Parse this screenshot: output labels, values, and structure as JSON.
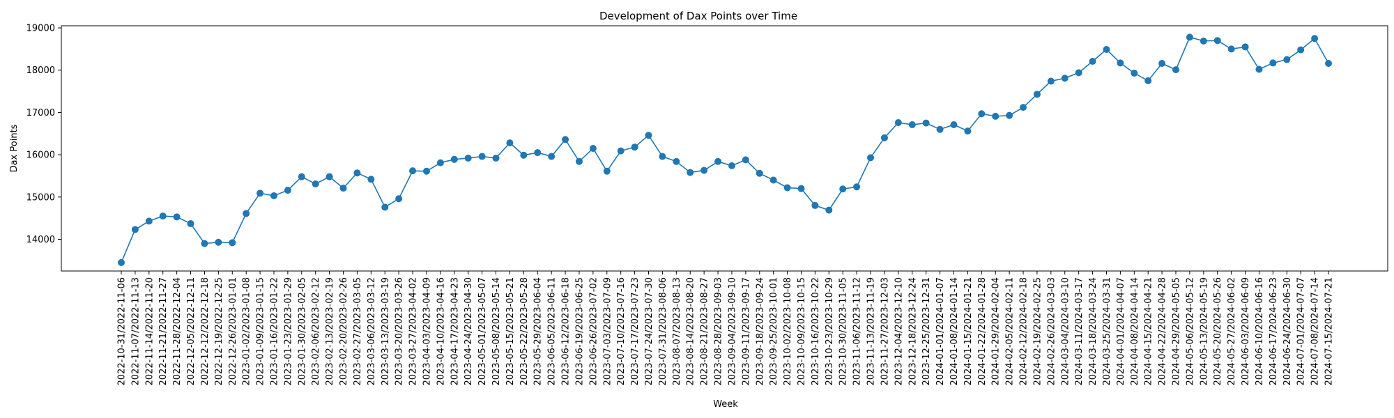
{
  "chart_data": {
    "type": "line",
    "title": "Development of Dax Points over Time",
    "xlabel": "Week",
    "ylabel": "Dax Points",
    "ylim": [
      13250,
      19050
    ],
    "yticks": [
      14000,
      15000,
      16000,
      17000,
      18000,
      19000
    ],
    "grid": false,
    "color": "#1f77b4",
    "categories": [
      "2022-10-31/2022-11-06",
      "2022-11-07/2022-11-13",
      "2022-11-14/2022-11-20",
      "2022-11-21/2022-11-27",
      "2022-11-28/2022-12-04",
      "2022-12-05/2022-12-11",
      "2022-12-12/2022-12-18",
      "2022-12-19/2022-12-25",
      "2022-12-26/2023-01-01",
      "2023-01-02/2023-01-08",
      "2023-01-09/2023-01-15",
      "2023-01-16/2023-01-22",
      "2023-01-23/2023-01-29",
      "2023-01-30/2023-02-05",
      "2023-02-06/2023-02-12",
      "2023-02-13/2023-02-19",
      "2023-02-20/2023-02-26",
      "2023-02-27/2023-03-05",
      "2023-03-06/2023-03-12",
      "2023-03-13/2023-03-19",
      "2023-03-20/2023-03-26",
      "2023-03-27/2023-04-02",
      "2023-04-03/2023-04-09",
      "2023-04-10/2023-04-16",
      "2023-04-17/2023-04-23",
      "2023-04-24/2023-04-30",
      "2023-05-01/2023-05-07",
      "2023-05-08/2023-05-14",
      "2023-05-15/2023-05-21",
      "2023-05-22/2023-05-28",
      "2023-05-29/2023-06-04",
      "2023-06-05/2023-06-11",
      "2023-06-12/2023-06-18",
      "2023-06-19/2023-06-25",
      "2023-06-26/2023-07-02",
      "2023-07-03/2023-07-09",
      "2023-07-10/2023-07-16",
      "2023-07-17/2023-07-23",
      "2023-07-24/2023-07-30",
      "2023-07-31/2023-08-06",
      "2023-08-07/2023-08-13",
      "2023-08-14/2023-08-20",
      "2023-08-21/2023-08-27",
      "2023-08-28/2023-09-03",
      "2023-09-04/2023-09-10",
      "2023-09-11/2023-09-17",
      "2023-09-18/2023-09-24",
      "2023-09-25/2023-10-01",
      "2023-10-02/2023-10-08",
      "2023-10-09/2023-10-15",
      "2023-10-16/2023-10-22",
      "2023-10-23/2023-10-29",
      "2023-10-30/2023-11-05",
      "2023-11-06/2023-11-12",
      "2023-11-13/2023-11-19",
      "2023-11-27/2023-12-03",
      "2023-12-04/2023-12-10",
      "2023-12-18/2023-12-24",
      "2023-12-25/2023-12-31",
      "2024-01-01/2024-01-07",
      "2024-01-08/2024-01-14",
      "2024-01-15/2024-01-21",
      "2024-01-22/2024-01-28",
      "2024-01-29/2024-02-04",
      "2024-02-05/2024-02-11",
      "2024-02-12/2024-02-18",
      "2024-02-19/2024-02-25",
      "2024-02-26/2024-03-03",
      "2024-03-04/2024-03-10",
      "2024-03-11/2024-03-17",
      "2024-03-18/2024-03-24",
      "2024-03-25/2024-03-31",
      "2024-04-01/2024-04-07",
      "2024-04-08/2024-04-14",
      "2024-04-15/2024-04-21",
      "2024-04-22/2024-04-28",
      "2024-04-29/2024-05-05",
      "2024-05-06/2024-05-12",
      "2024-05-13/2024-05-19",
      "2024-05-20/2024-05-26",
      "2024-05-27/2024-06-02",
      "2024-06-03/2024-06-09",
      "2024-06-10/2024-06-16",
      "2024-06-17/2024-06-23",
      "2024-06-24/2024-06-30",
      "2024-07-01/2024-07-07",
      "2024-07-08/2024-07-14",
      "2024-07-15/2024-07-21"
    ],
    "values": [
      13450,
      14230,
      14430,
      14550,
      14530,
      14370,
      13900,
      13930,
      13920,
      14610,
      15090,
      15030,
      15160,
      15480,
      15310,
      15480,
      15210,
      15570,
      15420,
      14760,
      14960,
      15620,
      15610,
      15810,
      15890,
      15920,
      15960,
      15920,
      16280,
      15990,
      16050,
      15960,
      16360,
      15840,
      16150,
      15610,
      16090,
      16180,
      16460,
      15960,
      15840,
      15580,
      15630,
      15840,
      15740,
      15880,
      15560,
      15400,
      15220,
      15200,
      14800,
      14690,
      15190,
      15240,
      15930,
      16400,
      16760,
      16710,
      16750,
      16600,
      16710,
      16560,
      16970,
      16910,
      16930,
      17120,
      17430,
      17740,
      17810,
      17940,
      18210,
      18490,
      18170,
      17930,
      17750,
      18160,
      18010,
      18780,
      18690,
      18700,
      18500,
      18550,
      18020,
      18170,
      18250,
      18480,
      18750,
      18160
    ]
  }
}
